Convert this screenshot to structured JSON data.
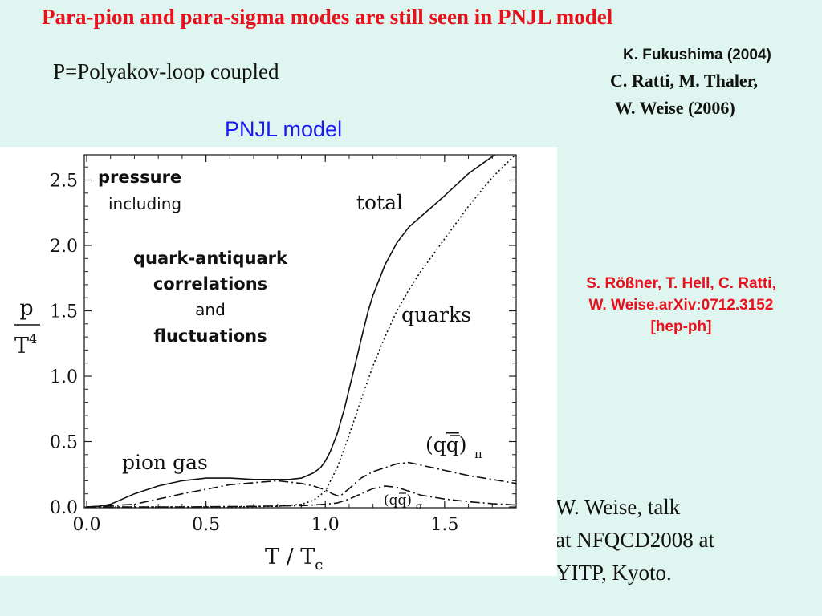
{
  "slide": {
    "title": "Para-pion and para-sigma modes are still seen in PNJL model",
    "subtitle": "P=Polyakov-loop coupled",
    "model_label": "PNJL model",
    "refs_top": [
      "K. Fukushima (2004)",
      "C. Ratti,  M. Thaler,",
      "W. Weise (2006)"
    ],
    "ref_rossner": [
      "S. Rößner,  T. Hell, C. Ratti,",
      "W. Weise.arXiv:0712.3152",
      "[hep-ph]"
    ],
    "talk": [
      "W. Weise, talk",
      "at NFQCD2008 at",
      "YITP, Kyoto."
    ],
    "colors": {
      "title": "#e8101c",
      "model_label": "#1a1aee",
      "background": "#dff5ef"
    }
  },
  "chart_data": {
    "type": "line",
    "xlabel": "T / T",
    "xlabel_sub": "c",
    "ylabel_num": "p",
    "ylabel_den": "T",
    "ylabel_exp": "4",
    "xlim": [
      0.0,
      1.8
    ],
    "ylim": [
      0.0,
      2.7
    ],
    "x_ticks": [
      0.0,
      0.5,
      1.0,
      1.5
    ],
    "x_tick_labels": [
      "0.0",
      "0.5",
      "1.0",
      "1.5"
    ],
    "y_ticks": [
      0.0,
      0.5,
      1.0,
      1.5,
      2.0,
      2.5
    ],
    "y_tick_labels": [
      "0.0",
      "0.5",
      "1.0",
      "1.5",
      "2.0",
      "2.5"
    ],
    "annotations": {
      "pressure": "pressure",
      "including": "including",
      "qaq": "quark-antiquark",
      "correlations": "correlations",
      "and": "and",
      "fluctuations": "fluctuations",
      "total": "total",
      "quarks": "quarks",
      "pion_gas": "pion gas",
      "qq_pi": "(q",
      "qq_pi_bar": "q",
      "qq_pi_close": ")",
      "qq_pi_sub": "π",
      "qq_sigma": "(q",
      "qq_sigma_bar": "q",
      "qq_sigma_close": ")",
      "qq_sigma_sub": "σ"
    },
    "series": [
      {
        "style": "solid",
        "x": [
          0.0,
          0.05,
          0.1,
          0.15,
          0.2,
          0.3,
          0.4,
          0.5,
          0.6,
          0.7,
          0.8,
          0.85,
          0.9,
          0.95,
          0.98,
          1.0,
          1.02,
          1.05,
          1.08,
          1.1,
          1.12,
          1.15,
          1.18,
          1.2,
          1.25,
          1.3,
          1.35,
          1.4,
          1.5,
          1.6,
          1.7,
          1.8
        ],
        "y": [
          0.0,
          0.005,
          0.02,
          0.06,
          0.1,
          0.16,
          0.2,
          0.22,
          0.22,
          0.21,
          0.21,
          0.21,
          0.22,
          0.26,
          0.3,
          0.35,
          0.42,
          0.56,
          0.75,
          0.9,
          1.05,
          1.28,
          1.5,
          1.62,
          1.85,
          2.02,
          2.14,
          2.22,
          2.38,
          2.55,
          2.68,
          2.8
        ]
      },
      {
        "style": "dotted",
        "x": [
          0.0,
          0.3,
          0.6,
          0.8,
          0.9,
          0.95,
          1.0,
          1.05,
          1.1,
          1.15,
          1.2,
          1.25,
          1.3,
          1.35,
          1.4,
          1.5,
          1.6,
          1.7,
          1.8
        ],
        "y": [
          0.0,
          0.0,
          0.0,
          0.005,
          0.02,
          0.05,
          0.12,
          0.3,
          0.55,
          0.82,
          1.08,
          1.3,
          1.5,
          1.66,
          1.8,
          2.05,
          2.3,
          2.52,
          2.7
        ]
      },
      {
        "style": "dash-dot",
        "x": [
          0.0,
          0.2,
          0.4,
          0.6,
          0.8,
          0.9,
          0.95,
          1.0,
          1.03,
          1.06,
          1.1,
          1.15,
          1.2,
          1.25,
          1.3,
          1.35,
          1.4,
          1.5,
          1.6,
          1.7,
          1.8
        ],
        "y": [
          0.0,
          0.02,
          0.1,
          0.17,
          0.2,
          0.18,
          0.16,
          0.13,
          0.1,
          0.08,
          0.14,
          0.22,
          0.27,
          0.3,
          0.33,
          0.34,
          0.32,
          0.28,
          0.24,
          0.21,
          0.18
        ]
      },
      {
        "style": "dash-dot",
        "x": [
          0.0,
          0.4,
          0.7,
          0.9,
          1.0,
          1.05,
          1.1,
          1.15,
          1.2,
          1.25,
          1.3,
          1.35,
          1.4,
          1.5,
          1.6,
          1.7,
          1.8
        ],
        "y": [
          0.0,
          0.0,
          0.005,
          0.01,
          0.02,
          0.03,
          0.06,
          0.1,
          0.14,
          0.16,
          0.15,
          0.12,
          0.09,
          0.06,
          0.04,
          0.025,
          0.015
        ]
      }
    ]
  }
}
